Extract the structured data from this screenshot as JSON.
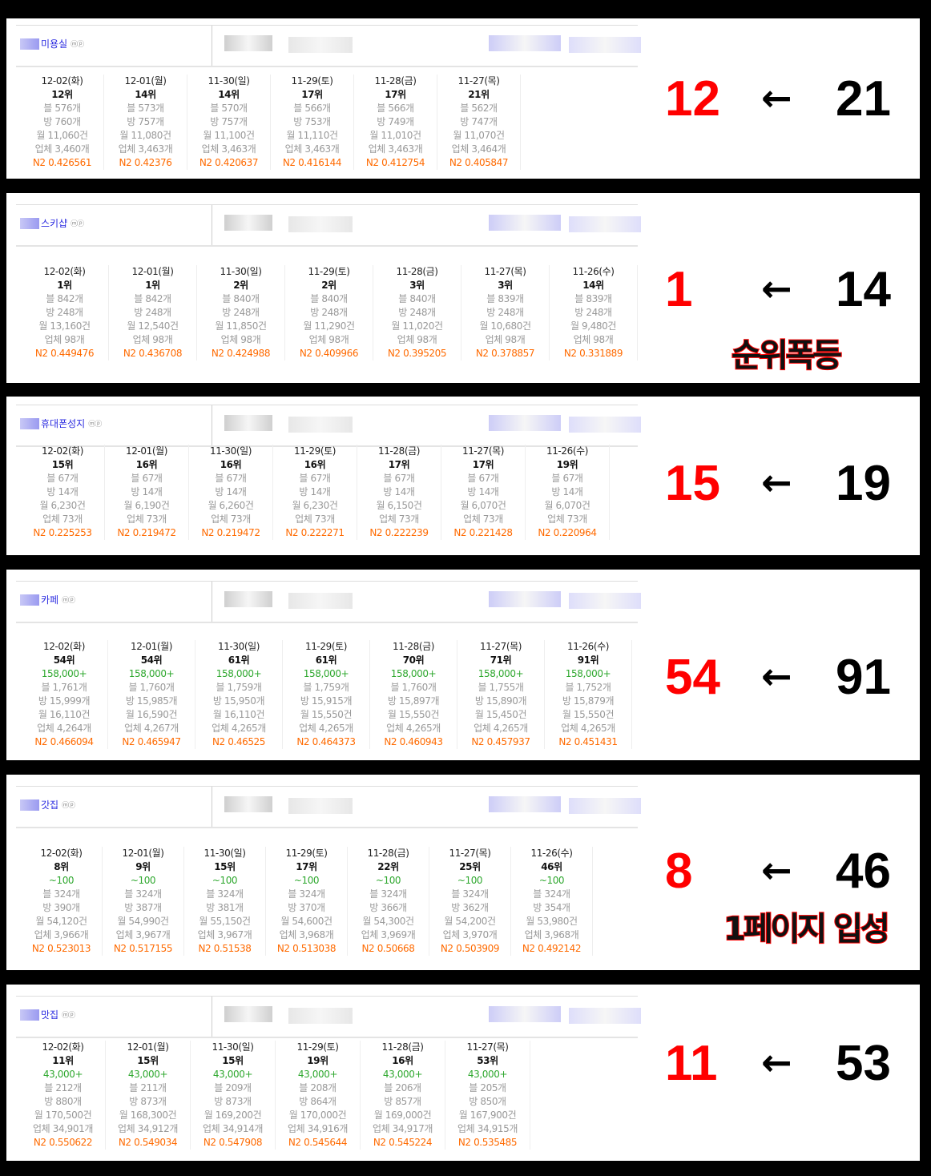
{
  "arrow_glyph": "←",
  "colors": {
    "rank_change": "#ff0000",
    "n2": "#ff6a00",
    "volume": "#2fa82f",
    "keyword": "#2a2ae0"
  },
  "panels": [
    {
      "keyword": "미용실",
      "mp": "ⓜⓟ",
      "new_rank": "12",
      "old_rank": "21",
      "note": "",
      "columns": [
        {
          "date": "12-02(화)",
          "rank": "12위",
          "blog": "블 576개",
          "bang": "방 760개",
          "month": "월 11,060건",
          "biz": "업체 3,460개",
          "n2": "N2 0.426561"
        },
        {
          "date": "12-01(월)",
          "rank": "14위",
          "blog": "블 573개",
          "bang": "방 757개",
          "month": "월 11,080건",
          "biz": "업체 3,463개",
          "n2": "N2 0.42376"
        },
        {
          "date": "11-30(일)",
          "rank": "14위",
          "blog": "블 570개",
          "bang": "방 757개",
          "month": "월 11,100건",
          "biz": "업체 3,463개",
          "n2": "N2 0.420637"
        },
        {
          "date": "11-29(토)",
          "rank": "17위",
          "blog": "블 566개",
          "bang": "방 753개",
          "month": "월 11,110건",
          "biz": "업체 3,463개",
          "n2": "N2 0.416144"
        },
        {
          "date": "11-28(금)",
          "rank": "17위",
          "blog": "블 566개",
          "bang": "방 749개",
          "month": "월 11,010건",
          "biz": "업체 3,463개",
          "n2": "N2 0.412754"
        },
        {
          "date": "11-27(목)",
          "rank": "21위",
          "blog": "블 562개",
          "bang": "방 747개",
          "month": "월 11,070건",
          "biz": "업체 3,464개",
          "n2": "N2 0.405847"
        }
      ]
    },
    {
      "keyword": "스키샵",
      "mp": "ⓜⓟ",
      "new_rank": "1",
      "old_rank": "14",
      "note": "순위폭등",
      "columns": [
        {
          "date": "12-02(화)",
          "rank": "1위",
          "blog": "블 842개",
          "bang": "방 248개",
          "month": "월 13,160건",
          "biz": "업체 98개",
          "n2": "N2 0.449476"
        },
        {
          "date": "12-01(월)",
          "rank": "1위",
          "blog": "블 842개",
          "bang": "방 248개",
          "month": "월 12,540건",
          "biz": "업체 98개",
          "n2": "N2 0.436708"
        },
        {
          "date": "11-30(일)",
          "rank": "2위",
          "blog": "블 840개",
          "bang": "방 248개",
          "month": "월 11,850건",
          "biz": "업체 98개",
          "n2": "N2 0.424988"
        },
        {
          "date": "11-29(토)",
          "rank": "2위",
          "blog": "블 840개",
          "bang": "방 248개",
          "month": "월 11,290건",
          "biz": "업체 98개",
          "n2": "N2 0.409966"
        },
        {
          "date": "11-28(금)",
          "rank": "3위",
          "blog": "블 840개",
          "bang": "방 248개",
          "month": "월 11,020건",
          "biz": "업체 98개",
          "n2": "N2 0.395205"
        },
        {
          "date": "11-27(목)",
          "rank": "3위",
          "blog": "블 839개",
          "bang": "방 248개",
          "month": "월 10,680건",
          "biz": "업체 98개",
          "n2": "N2 0.378857"
        },
        {
          "date": "11-26(수)",
          "rank": "14위",
          "blog": "블 839개",
          "bang": "방 248개",
          "month": "월 9,480건",
          "biz": "업체 98개",
          "n2": "N2 0.331889"
        }
      ]
    },
    {
      "keyword": "휴대폰성지",
      "mp": "ⓜⓟ",
      "new_rank": "15",
      "old_rank": "19",
      "note": "",
      "columns": [
        {
          "date": "12-02(화)",
          "rank": "15위",
          "blog": "블 67개",
          "bang": "방 14개",
          "month": "월 6,230건",
          "biz": "업체 73개",
          "n2": "N2 0.225253"
        },
        {
          "date": "12-01(월)",
          "rank": "16위",
          "blog": "블 67개",
          "bang": "방 14개",
          "month": "월 6,190건",
          "biz": "업체 73개",
          "n2": "N2 0.219472"
        },
        {
          "date": "11-30(일)",
          "rank": "16위",
          "blog": "블 67개",
          "bang": "방 14개",
          "month": "월 6,260건",
          "biz": "업체 73개",
          "n2": "N2 0.219472"
        },
        {
          "date": "11-29(토)",
          "rank": "16위",
          "blog": "블 67개",
          "bang": "방 14개",
          "month": "월 6,230건",
          "biz": "업체 73개",
          "n2": "N2 0.222271"
        },
        {
          "date": "11-28(금)",
          "rank": "17위",
          "blog": "블 67개",
          "bang": "방 14개",
          "month": "월 6,150건",
          "biz": "업체 73개",
          "n2": "N2 0.222239"
        },
        {
          "date": "11-27(목)",
          "rank": "17위",
          "blog": "블 67개",
          "bang": "방 14개",
          "month": "월 6,070건",
          "biz": "업체 73개",
          "n2": "N2 0.221428"
        },
        {
          "date": "11-26(수)",
          "rank": "19위",
          "blog": "블 67개",
          "bang": "방 14개",
          "month": "월 6,070건",
          "biz": "업체 73개",
          "n2": "N2 0.220964"
        }
      ]
    },
    {
      "keyword": "카페",
      "mp": "ⓜⓟ",
      "new_rank": "54",
      "old_rank": "91",
      "note": "",
      "columns": [
        {
          "date": "12-02(화)",
          "rank": "54위",
          "volume": "158,000+",
          "blog": "블 1,761개",
          "bang": "방 15,999개",
          "month": "월 16,110건",
          "biz": "업체 4,264개",
          "n2": "N2 0.466094"
        },
        {
          "date": "12-01(월)",
          "rank": "54위",
          "volume": "158,000+",
          "blog": "블 1,760개",
          "bang": "방 15,985개",
          "month": "월 16,590건",
          "biz": "업체 4,267개",
          "n2": "N2 0.465947"
        },
        {
          "date": "11-30(일)",
          "rank": "61위",
          "volume": "158,000+",
          "blog": "블 1,759개",
          "bang": "방 15,950개",
          "month": "월 16,110건",
          "biz": "업체 4,265개",
          "n2": "N2 0.46525"
        },
        {
          "date": "11-29(토)",
          "rank": "61위",
          "volume": "158,000+",
          "blog": "블 1,759개",
          "bang": "방 15,915개",
          "month": "월 15,550건",
          "biz": "업체 4,265개",
          "n2": "N2 0.464373"
        },
        {
          "date": "11-28(금)",
          "rank": "70위",
          "volume": "158,000+",
          "blog": "블 1,760개",
          "bang": "방 15,897개",
          "month": "월 15,550건",
          "biz": "업체 4,265개",
          "n2": "N2 0.460943"
        },
        {
          "date": "11-27(목)",
          "rank": "71위",
          "volume": "158,000+",
          "blog": "블 1,755개",
          "bang": "방 15,890개",
          "month": "월 15,450건",
          "biz": "업체 4,265개",
          "n2": "N2 0.457937"
        },
        {
          "date": "11-26(수)",
          "rank": "91위",
          "volume": "158,000+",
          "blog": "블 1,752개",
          "bang": "방 15,879개",
          "month": "월 15,550건",
          "biz": "업체 4,265개",
          "n2": "N2 0.451431"
        }
      ]
    },
    {
      "keyword": "갓집",
      "mp": "ⓜⓟ",
      "new_rank": "8",
      "old_rank": "46",
      "note": "1페이지 입성",
      "columns": [
        {
          "date": "12-02(화)",
          "rank": "8위",
          "volume": "~100",
          "blog": "블 324개",
          "bang": "방 390개",
          "month": "월 54,120건",
          "biz": "업체 3,966개",
          "n2": "N2 0.523013"
        },
        {
          "date": "12-01(월)",
          "rank": "9위",
          "volume": "~100",
          "blog": "블 324개",
          "bang": "방 387개",
          "month": "월 54,990건",
          "biz": "업체 3,967개",
          "n2": "N2 0.517155"
        },
        {
          "date": "11-30(일)",
          "rank": "15위",
          "volume": "~100",
          "blog": "블 324개",
          "bang": "방 381개",
          "month": "월 55,150건",
          "biz": "업체 3,967개",
          "n2": "N2 0.51538"
        },
        {
          "date": "11-29(토)",
          "rank": "17위",
          "volume": "~100",
          "blog": "블 324개",
          "bang": "방 370개",
          "month": "월 54,600건",
          "biz": "업체 3,968개",
          "n2": "N2 0.513038"
        },
        {
          "date": "11-28(금)",
          "rank": "22위",
          "volume": "~100",
          "blog": "블 324개",
          "bang": "방 366개",
          "month": "월 54,300건",
          "biz": "업체 3,969개",
          "n2": "N2 0.50668"
        },
        {
          "date": "11-27(목)",
          "rank": "25위",
          "volume": "~100",
          "blog": "블 324개",
          "bang": "방 362개",
          "month": "월 54,200건",
          "biz": "업체 3,970개",
          "n2": "N2 0.503909"
        },
        {
          "date": "11-26(수)",
          "rank": "46위",
          "volume": "~100",
          "blog": "블 324개",
          "bang": "방 354개",
          "month": "월 53,980건",
          "biz": "업체 3,968개",
          "n2": "N2 0.492142"
        }
      ]
    },
    {
      "keyword": "맛집",
      "mp": "ⓜⓟ",
      "new_rank": "11",
      "old_rank": "53",
      "note": "",
      "columns": [
        {
          "date": "12-02(화)",
          "rank": "11위",
          "volume": "43,000+",
          "blog": "블 212개",
          "bang": "방 880개",
          "month": "월 170,500건",
          "biz": "업체 34,901개",
          "n2": "N2 0.550622"
        },
        {
          "date": "12-01(월)",
          "rank": "15위",
          "volume": "43,000+",
          "blog": "블 211개",
          "bang": "방 873개",
          "month": "월 168,300건",
          "biz": "업체 34,912개",
          "n2": "N2 0.549034"
        },
        {
          "date": "11-30(일)",
          "rank": "15위",
          "volume": "43,000+",
          "blog": "블 209개",
          "bang": "방 873개",
          "month": "월 169,200건",
          "biz": "업체 34,914개",
          "n2": "N2 0.547908"
        },
        {
          "date": "11-29(토)",
          "rank": "19위",
          "volume": "43,000+",
          "blog": "블 208개",
          "bang": "방 864개",
          "month": "월 170,000건",
          "biz": "업체 34,916개",
          "n2": "N2 0.545644"
        },
        {
          "date": "11-28(금)",
          "rank": "16위",
          "volume": "43,000+",
          "blog": "블 206개",
          "bang": "방 857개",
          "month": "월 169,000건",
          "biz": "업체 34,917개",
          "n2": "N2 0.545224"
        },
        {
          "date": "11-27(목)",
          "rank": "53위",
          "volume": "43,000+",
          "blog": "블 205개",
          "bang": "방 850개",
          "month": "월 167,900건",
          "biz": "업체 34,915개",
          "n2": "N2 0.535485"
        }
      ]
    }
  ]
}
